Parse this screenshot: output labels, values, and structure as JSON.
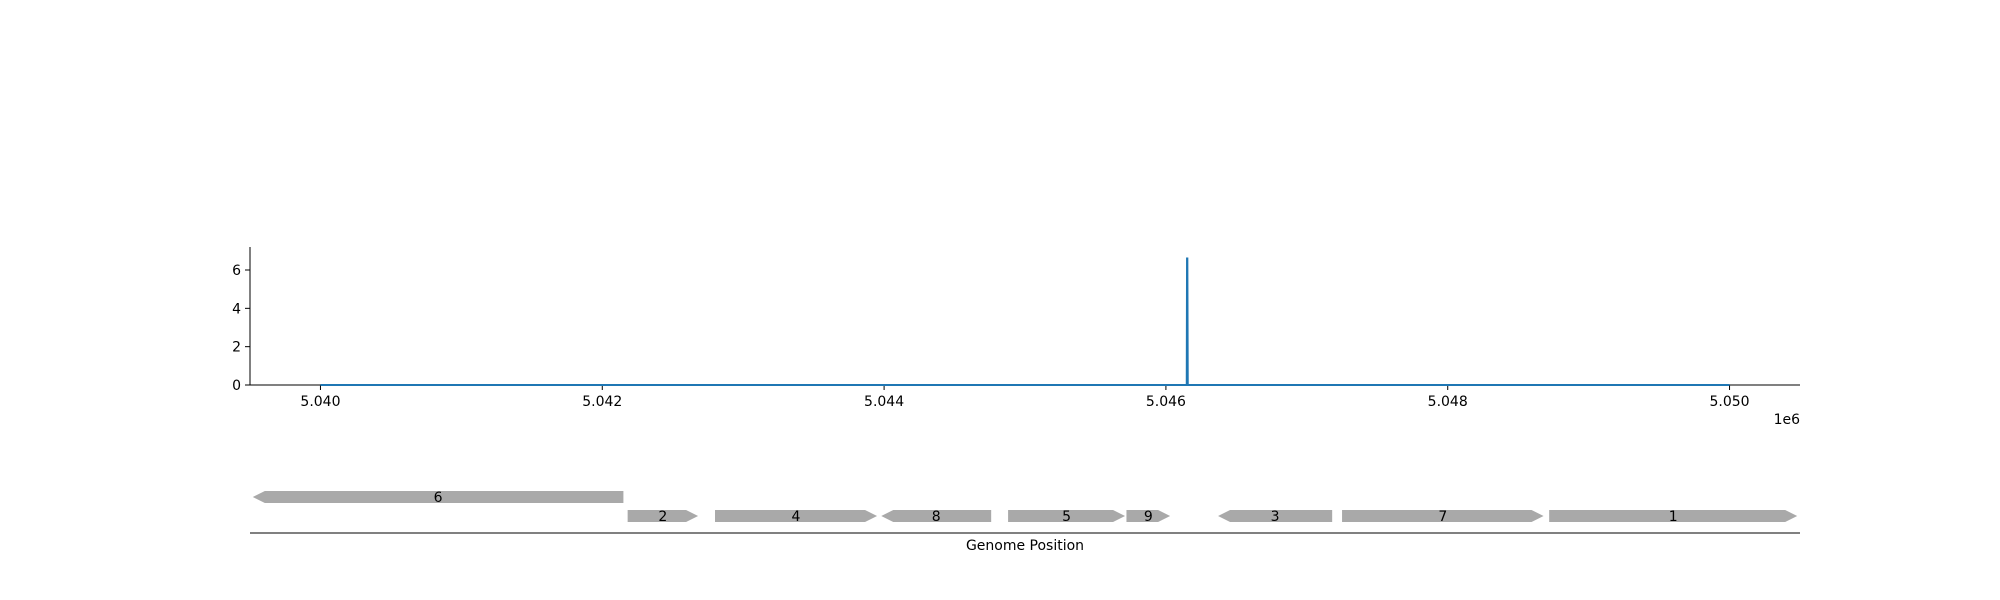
{
  "chart_data": [
    {
      "type": "line",
      "x": [
        5040000,
        5046148,
        5046150,
        5046152,
        5046155,
        5050000
      ],
      "series": [
        {
          "values": [
            0,
            0,
            6.6,
            6.6,
            0,
            0
          ],
          "color": "#1f77b4"
        }
      ],
      "xlim": [
        5039500,
        5050500
      ],
      "ylim": [
        0,
        7.2
      ],
      "xticks": [
        5040000,
        5042000,
        5044000,
        5046000,
        5048000,
        5050000
      ],
      "xtick_labels": [
        "5.040",
        "5.042",
        "5.044",
        "5.046",
        "5.048",
        "5.050"
      ],
      "x_offset_label": "1e6",
      "yticks": [
        0,
        2,
        4,
        6
      ],
      "ytick_labels": [
        "0",
        "2",
        "4",
        "6"
      ],
      "grid": false
    },
    {
      "type": "gene_track",
      "xlabel": "Genome Position",
      "genes": [
        {
          "label": "6",
          "start": 5039520,
          "end": 5042150,
          "strand": -1,
          "row": 0
        },
        {
          "label": "2",
          "start": 5042180,
          "end": 5042680,
          "strand": 1,
          "row": 1
        },
        {
          "label": "4",
          "start": 5042800,
          "end": 5043950,
          "strand": 1,
          "row": 1
        },
        {
          "label": "8",
          "start": 5043980,
          "end": 5044760,
          "strand": -1,
          "row": 1
        },
        {
          "label": "5",
          "start": 5044880,
          "end": 5045710,
          "strand": 1,
          "row": 1
        },
        {
          "label": "9",
          "start": 5045720,
          "end": 5046030,
          "strand": 1,
          "row": 1
        },
        {
          "label": "3",
          "start": 5046370,
          "end": 5047180,
          "strand": -1,
          "row": 1
        },
        {
          "label": "7",
          "start": 5047250,
          "end": 5048680,
          "strand": 1,
          "row": 1
        },
        {
          "label": "1",
          "start": 5048720,
          "end": 5050480,
          "strand": 1,
          "row": 1
        }
      ],
      "gene_color": "#a9a9a9"
    }
  ]
}
